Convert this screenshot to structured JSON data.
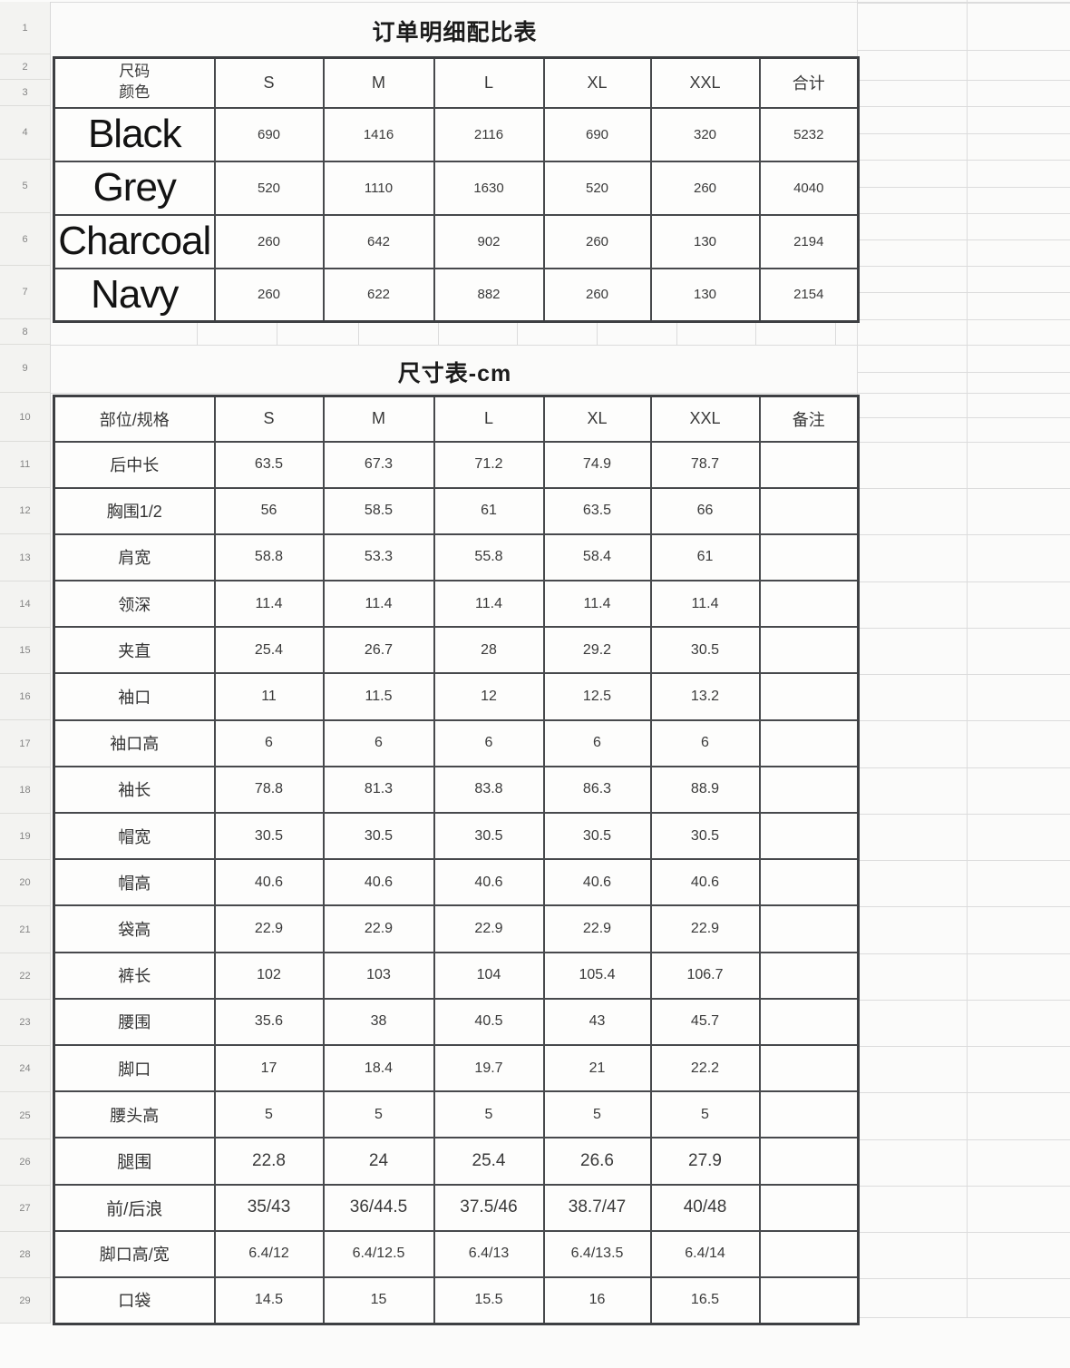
{
  "row_numbers": [
    "1",
    "2",
    "3",
    "4",
    "5",
    "6",
    "7",
    "8",
    "9",
    "10",
    "11",
    "12",
    "13",
    "14",
    "15",
    "16",
    "17",
    "18",
    "19",
    "20",
    "21",
    "22",
    "23",
    "24",
    "25",
    "26",
    "27",
    "28",
    "29"
  ],
  "order_table": {
    "title": "订单明细配比表",
    "corner_header_line1": "尺码",
    "corner_header_line2": "颜色",
    "size_headers": [
      "S",
      "M",
      "L",
      "XL",
      "XXL"
    ],
    "total_header": "合计",
    "rows": [
      {
        "color": "Black",
        "values": [
          "690",
          "1416",
          "2116",
          "690",
          "320"
        ],
        "total": "5232"
      },
      {
        "color": "Grey",
        "values": [
          "520",
          "1110",
          "1630",
          "520",
          "260"
        ],
        "total": "4040"
      },
      {
        "color": "Charcoal",
        "values": [
          "260",
          "642",
          "902",
          "260",
          "130"
        ],
        "total": "2194"
      },
      {
        "color": "Navy",
        "values": [
          "260",
          "622",
          "882",
          "260",
          "130"
        ],
        "total": "2154"
      }
    ]
  },
  "size_table": {
    "title": "尺寸表-cm",
    "corner_header": "部位/规格",
    "size_headers": [
      "S",
      "M",
      "L",
      "XL",
      "XXL"
    ],
    "notes_header": "备注",
    "rows": [
      {
        "label": "后中长",
        "values": [
          "63.5",
          "67.3",
          "71.2",
          "74.9",
          "78.7"
        ]
      },
      {
        "label": "胸围1/2",
        "values": [
          "56",
          "58.5",
          "61",
          "63.5",
          "66"
        ]
      },
      {
        "label": "肩宽",
        "values": [
          "58.8",
          "53.3",
          "55.8",
          "58.4",
          "61"
        ]
      },
      {
        "label": "领深",
        "values": [
          "11.4",
          "11.4",
          "11.4",
          "11.4",
          "11.4"
        ]
      },
      {
        "label": "夹直",
        "values": [
          "25.4",
          "26.7",
          "28",
          "29.2",
          "30.5"
        ]
      },
      {
        "label": "袖口",
        "values": [
          "11",
          "11.5",
          "12",
          "12.5",
          "13.2"
        ]
      },
      {
        "label": "袖口高",
        "values": [
          "6",
          "6",
          "6",
          "6",
          "6"
        ]
      },
      {
        "label": "袖长",
        "values": [
          "78.8",
          "81.3",
          "83.8",
          "86.3",
          "88.9"
        ]
      },
      {
        "label": "帽宽",
        "values": [
          "30.5",
          "30.5",
          "30.5",
          "30.5",
          "30.5"
        ]
      },
      {
        "label": "帽高",
        "values": [
          "40.6",
          "40.6",
          "40.6",
          "40.6",
          "40.6"
        ]
      },
      {
        "label": "袋高",
        "values": [
          "22.9",
          "22.9",
          "22.9",
          "22.9",
          "22.9"
        ]
      },
      {
        "label": "裤长",
        "values": [
          "102",
          "103",
          "104",
          "105.4",
          "106.7"
        ]
      },
      {
        "label": "腰围",
        "values": [
          "35.6",
          "38",
          "40.5",
          "43",
          "45.7"
        ]
      },
      {
        "label": "脚口",
        "values": [
          "17",
          "18.4",
          "19.7",
          "21",
          "22.2"
        ]
      },
      {
        "label": "腰头高",
        "values": [
          "5",
          "5",
          "5",
          "5",
          "5"
        ]
      },
      {
        "label": "腿围",
        "values": [
          "22.8",
          "24",
          "25.4",
          "26.6",
          "27.9"
        ]
      },
      {
        "label": "前/后浪",
        "values": [
          "35/43",
          "36/44.5",
          "37.5/46",
          "38.7/47",
          "40/48"
        ]
      },
      {
        "label": "脚口高/宽",
        "values": [
          "6.4/12",
          "6.4/12.5",
          "6.4/13",
          "6.4/13.5",
          "6.4/14"
        ]
      },
      {
        "label": "口袋",
        "values": [
          "14.5",
          "15",
          "15.5",
          "16",
          "16.5"
        ]
      }
    ]
  }
}
